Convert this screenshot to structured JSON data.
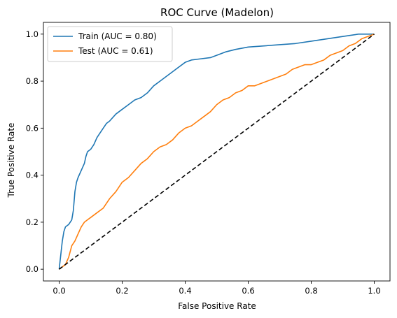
{
  "chart_data": {
    "type": "line",
    "title": "ROC Curve (Madelon)",
    "xlabel": "False Positive Rate",
    "ylabel": "True Positive Rate",
    "xlim": [
      -0.05,
      1.05
    ],
    "ylim": [
      -0.05,
      1.05
    ],
    "xticks": [
      0.0,
      0.2,
      0.4,
      0.6,
      0.8,
      1.0
    ],
    "yticks": [
      0.0,
      0.2,
      0.4,
      0.6,
      0.8,
      1.0
    ],
    "xtick_labels": [
      "0.0",
      "0.2",
      "0.4",
      "0.6",
      "0.8",
      "1.0"
    ],
    "ytick_labels": [
      "0.0",
      "0.2",
      "0.4",
      "0.6",
      "0.8",
      "1.0"
    ],
    "grid": false,
    "legend_position": "top-left",
    "series": [
      {
        "name": "Train (AUC = 0.80)",
        "color": "#1f77b4",
        "x": [
          0.0,
          0.005,
          0.01,
          0.015,
          0.02,
          0.03,
          0.04,
          0.045,
          0.05,
          0.055,
          0.06,
          0.07,
          0.08,
          0.085,
          0.09,
          0.1,
          0.11,
          0.12,
          0.13,
          0.14,
          0.15,
          0.16,
          0.18,
          0.2,
          0.22,
          0.24,
          0.26,
          0.28,
          0.3,
          0.32,
          0.34,
          0.36,
          0.38,
          0.4,
          0.42,
          0.45,
          0.48,
          0.5,
          0.53,
          0.56,
          0.6,
          0.65,
          0.7,
          0.75,
          0.8,
          0.85,
          0.9,
          0.95,
          1.0
        ],
        "y": [
          0.0,
          0.06,
          0.12,
          0.16,
          0.18,
          0.19,
          0.21,
          0.25,
          0.33,
          0.37,
          0.39,
          0.42,
          0.45,
          0.48,
          0.5,
          0.51,
          0.53,
          0.56,
          0.58,
          0.6,
          0.62,
          0.63,
          0.66,
          0.68,
          0.7,
          0.72,
          0.73,
          0.75,
          0.78,
          0.8,
          0.82,
          0.84,
          0.86,
          0.88,
          0.89,
          0.895,
          0.9,
          0.91,
          0.925,
          0.935,
          0.945,
          0.95,
          0.955,
          0.96,
          0.97,
          0.98,
          0.99,
          1.0,
          1.0
        ]
      },
      {
        "name": "Test (AUC = 0.61)",
        "color": "#ff7f0e",
        "x": [
          0.0,
          0.02,
          0.03,
          0.04,
          0.05,
          0.06,
          0.07,
          0.08,
          0.1,
          0.12,
          0.14,
          0.16,
          0.18,
          0.2,
          0.22,
          0.24,
          0.26,
          0.28,
          0.3,
          0.32,
          0.34,
          0.36,
          0.38,
          0.4,
          0.42,
          0.44,
          0.46,
          0.48,
          0.5,
          0.52,
          0.54,
          0.56,
          0.58,
          0.6,
          0.62,
          0.64,
          0.66,
          0.68,
          0.7,
          0.72,
          0.74,
          0.76,
          0.78,
          0.8,
          0.82,
          0.84,
          0.86,
          0.88,
          0.9,
          0.92,
          0.94,
          0.96,
          0.98,
          1.0
        ],
        "y": [
          0.0,
          0.02,
          0.05,
          0.1,
          0.12,
          0.15,
          0.18,
          0.2,
          0.22,
          0.24,
          0.26,
          0.3,
          0.33,
          0.37,
          0.39,
          0.42,
          0.45,
          0.47,
          0.5,
          0.52,
          0.53,
          0.55,
          0.58,
          0.6,
          0.61,
          0.63,
          0.65,
          0.67,
          0.7,
          0.72,
          0.73,
          0.75,
          0.76,
          0.78,
          0.78,
          0.79,
          0.8,
          0.81,
          0.82,
          0.83,
          0.85,
          0.86,
          0.87,
          0.87,
          0.88,
          0.89,
          0.91,
          0.92,
          0.93,
          0.95,
          0.96,
          0.98,
          0.99,
          1.0
        ]
      },
      {
        "name": "",
        "color": "#000000",
        "dashed": true,
        "x": [
          0.0,
          1.0
        ],
        "y": [
          0.0,
          1.0
        ]
      }
    ]
  }
}
